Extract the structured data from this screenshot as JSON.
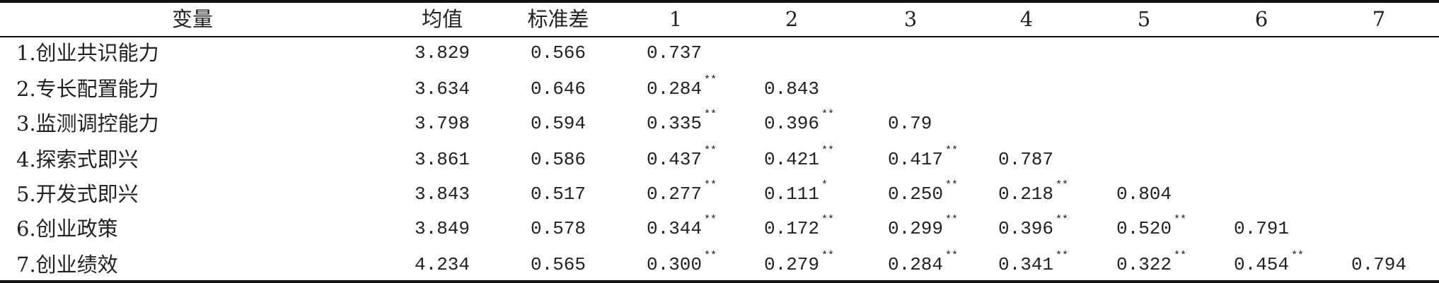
{
  "table": {
    "header": [
      "变量",
      "均值",
      "标准差",
      "1",
      "2",
      "3",
      "4",
      "5",
      "6",
      "7"
    ],
    "rows": [
      {
        "label": "1.创业共识能力",
        "mean": "3.829",
        "sd": "0.566",
        "corr": [
          {
            "value": "0.737"
          }
        ]
      },
      {
        "label": "2.专长配置能力",
        "mean": "3.634",
        "sd": "0.646",
        "corr": [
          {
            "value": "0.284",
            "sig": "**"
          },
          {
            "value": "0.843"
          }
        ]
      },
      {
        "label": "3.监测调控能力",
        "mean": "3.798",
        "sd": "0.594",
        "corr": [
          {
            "value": "0.335",
            "sig": "**"
          },
          {
            "value": "0.396",
            "sig": "**"
          },
          {
            "value": "0.79"
          }
        ]
      },
      {
        "label": "4.探索式即兴",
        "mean": "3.861",
        "sd": "0.586",
        "corr": [
          {
            "value": "0.437",
            "sig": "**"
          },
          {
            "value": "0.421",
            "sig": "**"
          },
          {
            "value": "0.417",
            "sig": "**"
          },
          {
            "value": "0.787"
          }
        ]
      },
      {
        "label": "5.开发式即兴",
        "mean": "3.843",
        "sd": "0.517",
        "corr": [
          {
            "value": "0.277",
            "sig": "**"
          },
          {
            "value": "0.111",
            "sig": "*"
          },
          {
            "value": "0.250",
            "sig": "**"
          },
          {
            "value": "0.218",
            "sig": "**"
          },
          {
            "value": "0.804"
          }
        ]
      },
      {
        "label": "6.创业政策",
        "mean": "3.849",
        "sd": "0.578",
        "corr": [
          {
            "value": "0.344",
            "sig": "**"
          },
          {
            "value": "0.172",
            "sig": "**"
          },
          {
            "value": "0.299",
            "sig": "**"
          },
          {
            "value": "0.396",
            "sig": "**"
          },
          {
            "value": "0.520",
            "sig": "**"
          },
          {
            "value": "0.791"
          }
        ]
      },
      {
        "label": "7.创业绩效",
        "mean": "4.234",
        "sd": "0.565",
        "corr": [
          {
            "value": "0.300",
            "sig": "**"
          },
          {
            "value": "0.279",
            "sig": "**"
          },
          {
            "value": "0.284",
            "sig": "**"
          },
          {
            "value": "0.341",
            "sig": "**"
          },
          {
            "value": "0.322",
            "sig": "**"
          },
          {
            "value": "0.454",
            "sig": "**"
          },
          {
            "value": "0.794"
          }
        ]
      }
    ]
  }
}
